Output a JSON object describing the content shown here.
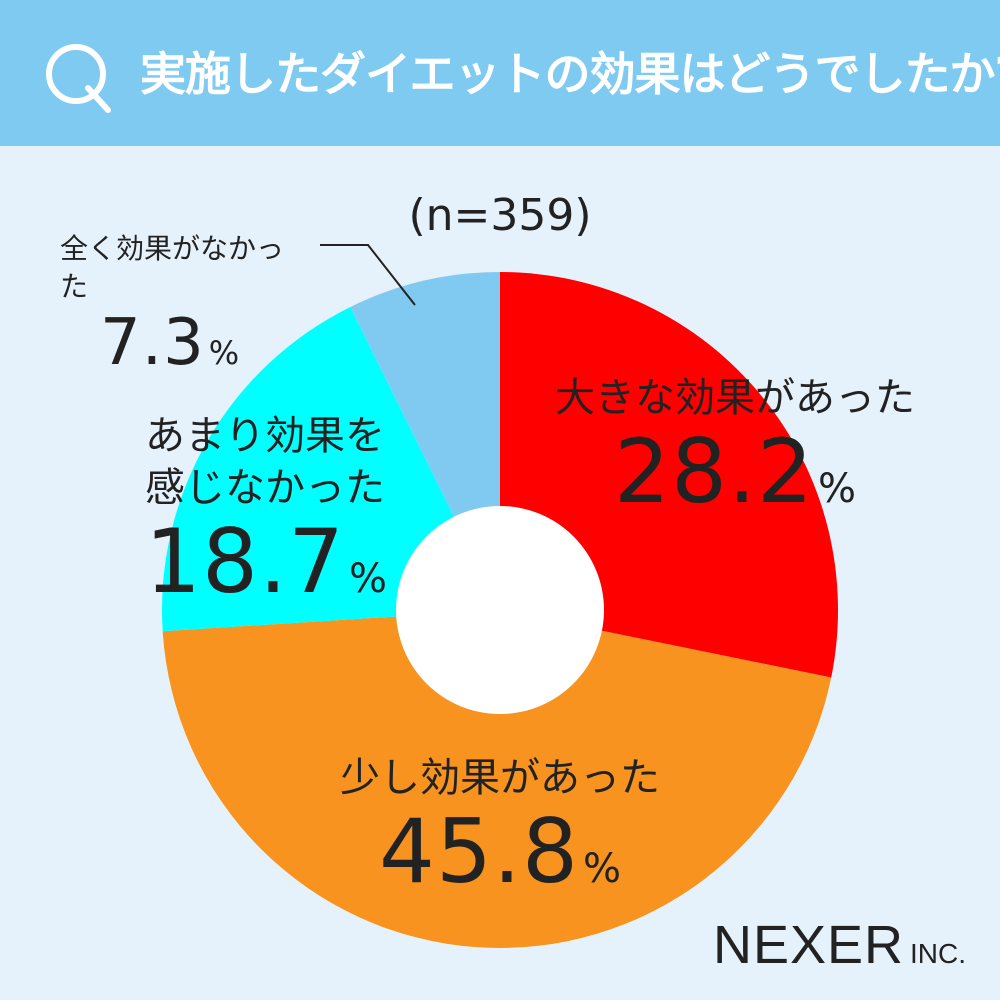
{
  "header": {
    "q_letter": "Q",
    "title": "実施したダイエットの効果はどうでしたか?",
    "background_color": "#7ecaf0"
  },
  "sample_label": "(n=359)",
  "chart_data": {
    "type": "pie",
    "title": "実施したダイエットの効果はどうでしたか?",
    "subtitle": "(n=359)",
    "donut": true,
    "slices": [
      {
        "label": "大きな効果があった",
        "value": 28.2,
        "color": "#fe0000"
      },
      {
        "label": "少し効果があった",
        "value": 45.8,
        "color": "#f7931e"
      },
      {
        "label": "あまり効果を感じなかった",
        "value": 18.7,
        "color": "#00ffff"
      },
      {
        "label": "全く効果がなかった",
        "value": 7.3,
        "color": "#80c9f1"
      }
    ]
  },
  "labels": {
    "s0": {
      "cat": "大きな効果があった",
      "num": "28.2",
      "pct": "%"
    },
    "s1": {
      "cat": "少し効果があった",
      "num": "45.8",
      "pct": "%"
    },
    "s2": {
      "cat1": "あまり効果を",
      "cat2": "感じなかった",
      "num": "18.7",
      "pct": "%"
    },
    "s3": {
      "cat": "全く効果がなかった",
      "num": "7.3",
      "pct": "%"
    }
  },
  "brand": {
    "main": "NEXER",
    "sub": "INC."
  }
}
